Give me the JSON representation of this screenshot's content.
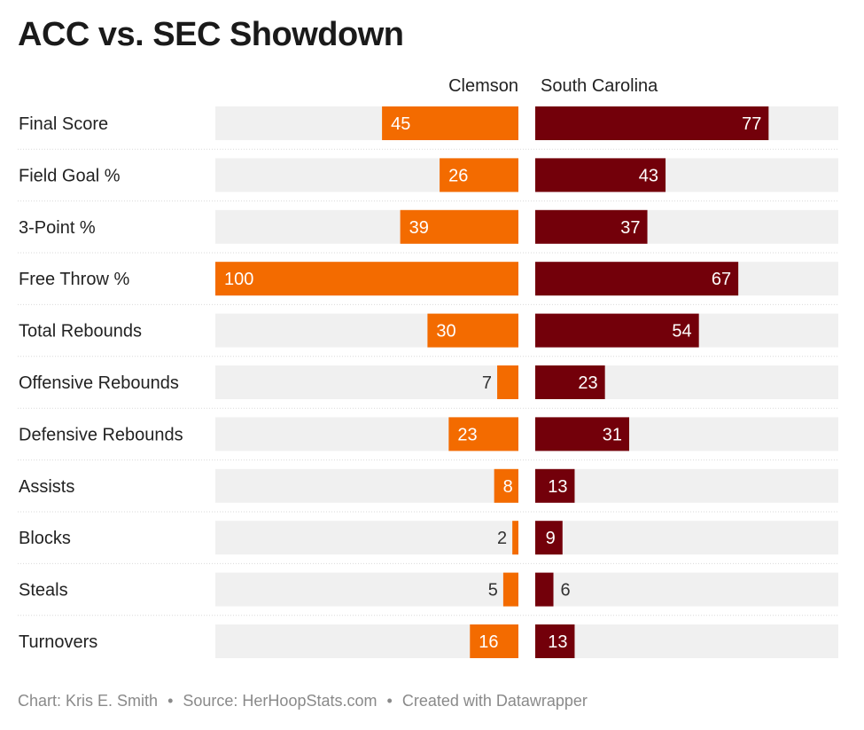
{
  "title": "ACC vs. SEC Showdown",
  "footer": {
    "chart": "Chart: Kris E. Smith",
    "source": "Source: HerHoopStats.com",
    "created": "Created with Datawrapper",
    "separator": "•"
  },
  "chart_data": {
    "type": "bar",
    "layout": "mirrored-horizontal",
    "title": "ACC vs. SEC Showdown",
    "categories": [
      "Final Score",
      "Field Goal %",
      "3-Point %",
      "Free Throw %",
      "Total Rebounds",
      "Offensive Rebounds",
      "Defensive Rebounds",
      "Assists",
      "Blocks",
      "Steals",
      "Turnovers"
    ],
    "series": [
      {
        "name": "Clemson",
        "color": "#f36b00",
        "values": [
          45,
          26,
          39,
          100,
          30,
          7,
          23,
          8,
          2,
          5,
          16
        ]
      },
      {
        "name": "South Carolina",
        "color": "#73000a",
        "values": [
          77,
          43,
          37,
          67,
          54,
          23,
          31,
          13,
          9,
          6,
          13
        ]
      }
    ],
    "xlim": [
      0,
      100
    ],
    "background_bar_color": "#f0f0f0",
    "grid": false,
    "legend": "top"
  }
}
